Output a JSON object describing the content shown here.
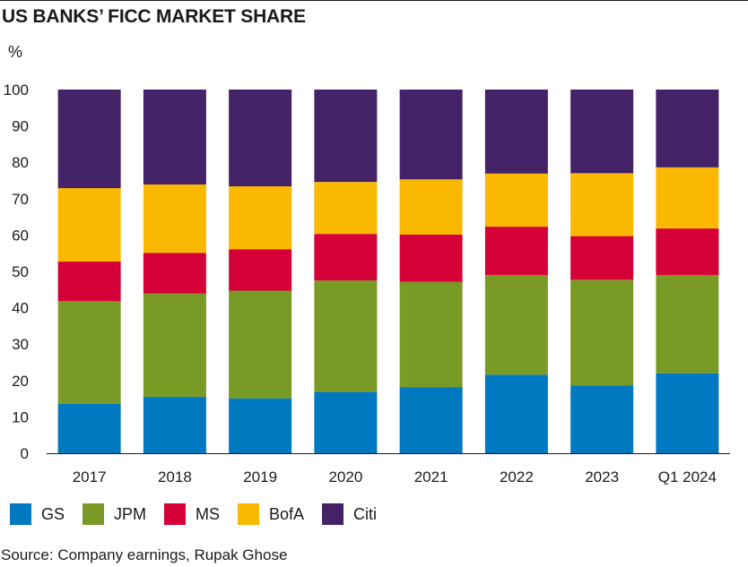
{
  "title": "US BANKS’ FICC MARKET SHARE",
  "unit": "%",
  "source": "Source: Company earnings, Rupak Ghose",
  "chart_data": {
    "type": "bar",
    "stacked": true,
    "title": "US BANKS’ FICC MARKET SHARE",
    "ylabel": "%",
    "xlabel": "",
    "ylim": [
      0,
      100
    ],
    "yticks": [
      0,
      10,
      20,
      30,
      40,
      50,
      60,
      70,
      80,
      90,
      100
    ],
    "grid": false,
    "legend_position": "bottom-left",
    "categories": [
      "2017",
      "2018",
      "2019",
      "2020",
      "2021",
      "2022",
      "2023",
      "Q1 2024"
    ],
    "series": [
      {
        "name": "GS",
        "color": "#0079c1",
        "values": [
          13.6,
          15.5,
          15.1,
          16.9,
          18.1,
          21.6,
          18.6,
          22.0
        ]
      },
      {
        "name": "JPM",
        "color": "#7a9a26",
        "values": [
          28.2,
          28.4,
          29.6,
          30.6,
          29.0,
          27.4,
          29.1,
          27.0
        ]
      },
      {
        "name": "MS",
        "color": "#d50037",
        "values": [
          10.9,
          11.2,
          11.4,
          12.8,
          13.0,
          13.3,
          12.0,
          12.8
        ]
      },
      {
        "name": "BofA",
        "color": "#fbb800",
        "values": [
          20.2,
          18.8,
          17.3,
          14.3,
          15.2,
          14.6,
          17.3,
          16.8
        ]
      },
      {
        "name": "Citi",
        "color": "#432268",
        "values": [
          27.1,
          26.1,
          26.6,
          25.4,
          24.7,
          23.1,
          23.0,
          21.4
        ]
      }
    ]
  }
}
